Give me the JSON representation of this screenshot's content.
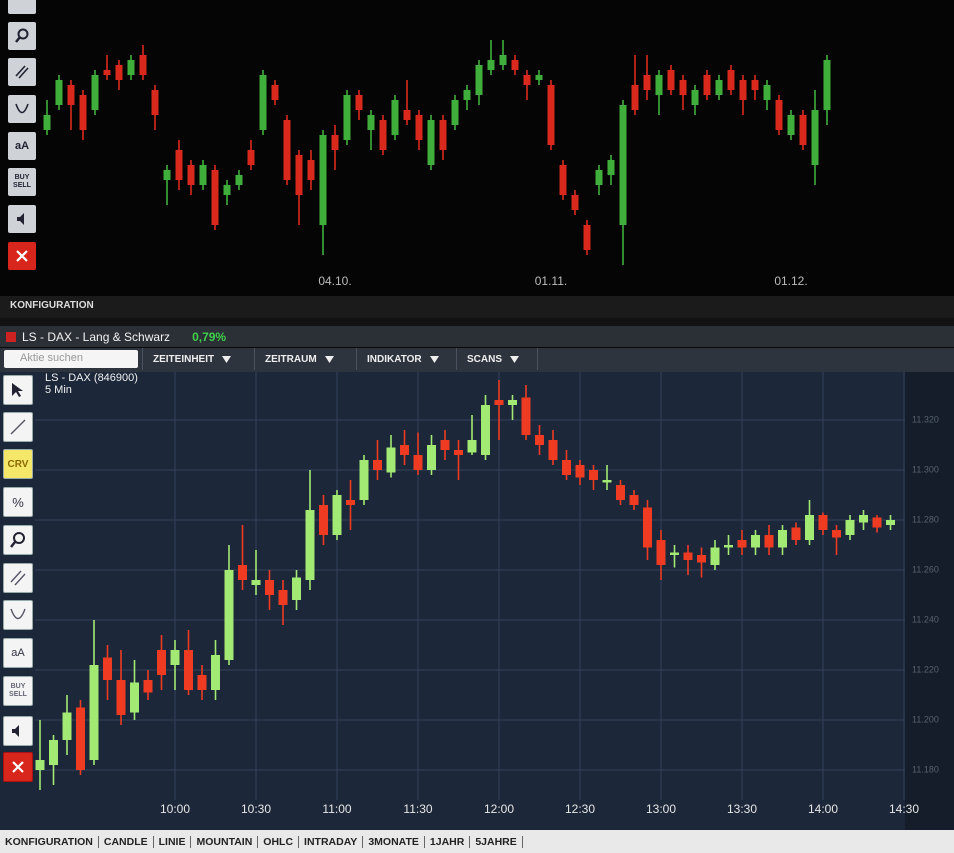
{
  "top_toolbar": {
    "font": "aA",
    "buy": "BUY",
    "sell": "SELL"
  },
  "top_footer": "KONFIGURATION",
  "window": {
    "title": "LS - DAX - Lang & Schwarz",
    "change": "0,79%",
    "search": "Aktie suchen",
    "menus": [
      "ZEITEINHEIT",
      "ZEITRAUM",
      "INDIKATOR",
      "SCANS"
    ]
  },
  "bottom_toolbar": {
    "crv": "CRV",
    "percent": "%",
    "font": "aA",
    "buy": "BUY",
    "sell": "SELL"
  },
  "bottom_footer": [
    "KONFIGURATION",
    "CANDLE",
    "LINIE",
    "MOUNTAIN",
    "OHLC",
    "INTRADAY",
    "3MONATE",
    "1JAHR",
    "5JAHRE"
  ],
  "chart_data": [
    {
      "type": "candlestick",
      "up_color": "#3fae3a",
      "down_color": "#d8291c",
      "grid": false,
      "ylim": [
        11000,
        11540
      ],
      "categories": [
        null,
        null,
        null,
        null,
        null,
        null,
        null,
        null,
        null,
        null,
        null,
        null,
        null,
        null,
        null,
        null,
        null,
        null,
        null,
        null,
        null,
        null,
        null,
        null,
        "04.10.",
        null,
        null,
        null,
        null,
        null,
        null,
        null,
        null,
        null,
        null,
        null,
        null,
        null,
        null,
        null,
        null,
        null,
        "01.11.",
        null,
        null,
        null,
        null,
        null,
        null,
        null,
        null,
        null,
        null,
        null,
        null,
        null,
        null,
        null,
        null,
        null,
        null,
        null,
        "01.12.",
        null,
        null,
        null
      ],
      "open": [
        11280,
        11330,
        11370,
        11350,
        11320,
        11400,
        11410,
        11390,
        11430,
        11360,
        11180,
        11240,
        11210,
        11170,
        11200,
        11150,
        11170,
        11240,
        11280,
        11370,
        11300,
        11230,
        11220,
        11090,
        11270,
        11260,
        11350,
        11280,
        11300,
        11270,
        11320,
        11310,
        11210,
        11300,
        11290,
        11340,
        11350,
        11400,
        11410,
        11420,
        11390,
        11380,
        11370,
        11210,
        11150,
        11090,
        11170,
        11190,
        11090,
        11370,
        11390,
        11350,
        11400,
        11380,
        11330,
        11390,
        11350,
        11400,
        11380,
        11380,
        11340,
        11340,
        11270,
        11310,
        11210,
        11320
      ],
      "high": [
        11340,
        11390,
        11380,
        11360,
        11400,
        11430,
        11420,
        11430,
        11450,
        11370,
        11210,
        11260,
        11220,
        11220,
        11210,
        11180,
        11200,
        11260,
        11400,
        11380,
        11310,
        11240,
        11240,
        11280,
        11290,
        11360,
        11360,
        11320,
        11310,
        11350,
        11380,
        11320,
        11310,
        11310,
        11350,
        11370,
        11420,
        11460,
        11460,
        11430,
        11400,
        11400,
        11380,
        11220,
        11160,
        11100,
        11210,
        11230,
        11340,
        11430,
        11430,
        11400,
        11410,
        11390,
        11370,
        11400,
        11390,
        11410,
        11390,
        11390,
        11380,
        11350,
        11320,
        11320,
        11360,
        11430
      ],
      "low": [
        11270,
        11320,
        11280,
        11260,
        11310,
        11380,
        11360,
        11380,
        11380,
        11280,
        11130,
        11160,
        11150,
        11160,
        11080,
        11130,
        11160,
        11200,
        11270,
        11330,
        11170,
        11090,
        11160,
        11030,
        11200,
        11250,
        11300,
        11240,
        11230,
        11260,
        11290,
        11240,
        11200,
        11220,
        11280,
        11320,
        11330,
        11390,
        11400,
        11390,
        11340,
        11370,
        11240,
        11140,
        11110,
        11030,
        11150,
        11170,
        11010,
        11310,
        11340,
        11310,
        11350,
        11320,
        11310,
        11340,
        11340,
        11350,
        11310,
        11340,
        11320,
        11270,
        11260,
        11240,
        11170,
        11290
      ],
      "close": [
        11310,
        11380,
        11330,
        11280,
        11390,
        11390,
        11380,
        11420,
        11390,
        11310,
        11200,
        11180,
        11170,
        11210,
        11090,
        11170,
        11190,
        11210,
        11390,
        11340,
        11180,
        11150,
        11180,
        11270,
        11240,
        11350,
        11320,
        11310,
        11240,
        11340,
        11300,
        11260,
        11300,
        11240,
        11340,
        11360,
        11410,
        11420,
        11430,
        11400,
        11370,
        11390,
        11250,
        11150,
        11120,
        11040,
        11200,
        11220,
        11330,
        11320,
        11360,
        11390,
        11360,
        11350,
        11360,
        11350,
        11380,
        11360,
        11340,
        11360,
        11370,
        11280,
        11310,
        11250,
        11320,
        11420
      ]
    },
    {
      "type": "candlestick",
      "title": "LS - DAX (846900)",
      "subtitle": "5 Min",
      "up_color": "#a3ea74",
      "down_color": "#ee3b22",
      "grid": true,
      "ylim": [
        11170,
        11340
      ],
      "yticks": [
        {
          "value": 11180,
          "label": "11.180"
        },
        {
          "value": 11200,
          "label": "11.200"
        },
        {
          "value": 11220,
          "label": "11.220"
        },
        {
          "value": 11240,
          "label": "11.240"
        },
        {
          "value": 11260,
          "label": "11.260"
        },
        {
          "value": 11280,
          "label": "11.280"
        },
        {
          "value": 11300,
          "label": "11.300"
        },
        {
          "value": 11320,
          "label": "11.320"
        }
      ],
      "categories": [
        null,
        null,
        null,
        null,
        null,
        null,
        null,
        null,
        null,
        null,
        "10:00",
        null,
        null,
        null,
        null,
        null,
        "10:30",
        null,
        null,
        null,
        null,
        null,
        "11:00",
        null,
        null,
        null,
        null,
        null,
        "11:30",
        null,
        null,
        null,
        null,
        null,
        "12:00",
        null,
        null,
        null,
        null,
        null,
        "12:30",
        null,
        null,
        null,
        null,
        null,
        "13:00",
        null,
        null,
        null,
        null,
        null,
        "13:30",
        null,
        null,
        null,
        null,
        null,
        "14:00",
        null,
        null,
        null,
        null,
        null,
        "14:30"
      ],
      "open": [
        11180,
        11182,
        11192,
        11205,
        11184,
        11225,
        11216,
        11203,
        11216,
        11228,
        11222,
        11228,
        11218,
        11212,
        11224,
        11262,
        11254,
        11256,
        11252,
        11248,
        11256,
        11286,
        11274,
        11288,
        11288,
        11304,
        11299,
        11310,
        11306,
        11300,
        11312,
        11308,
        11307,
        11306,
        11328,
        11326,
        11329,
        11314,
        11312,
        11304,
        11302,
        11300,
        11295,
        11294,
        11290,
        11285,
        11272,
        11266,
        11267,
        11266,
        11262,
        11269,
        11272,
        11269,
        11274,
        11269,
        11277,
        11272,
        11282,
        11276,
        11274,
        11279,
        11281,
        11278,
        null
      ],
      "high": [
        11200,
        11194,
        11210,
        11208,
        11240,
        11230,
        11228,
        11224,
        11220,
        11234,
        11232,
        11236,
        11222,
        11232,
        11270,
        11278,
        11268,
        11260,
        11256,
        11260,
        11300,
        11290,
        11292,
        11296,
        11306,
        11312,
        11314,
        11316,
        11315,
        11314,
        11316,
        11312,
        11322,
        11330,
        11336,
        11330,
        11334,
        11318,
        11316,
        11308,
        11304,
        11302,
        11302,
        11296,
        11292,
        11288,
        11276,
        11270,
        11270,
        11269,
        11272,
        11274,
        11276,
        11276,
        11278,
        11278,
        11279,
        11288,
        11283,
        11278,
        11282,
        11284,
        11282,
        11282,
        null
      ],
      "low": [
        11172,
        11174,
        11186,
        11178,
        11182,
        11208,
        11198,
        11200,
        11208,
        11212,
        11212,
        11210,
        11208,
        11208,
        11222,
        11252,
        11250,
        11244,
        11238,
        11244,
        11252,
        11270,
        11272,
        11276,
        11286,
        11296,
        11297,
        11302,
        11298,
        11298,
        11304,
        11296,
        11306,
        11304,
        11312,
        11320,
        11312,
        11306,
        11302,
        11296,
        11294,
        11292,
        11292,
        11286,
        11284,
        11264,
        11256,
        11261,
        11258,
        11257,
        11260,
        11266,
        11266,
        11266,
        11266,
        11266,
        11270,
        11270,
        11274,
        11266,
        11272,
        11276,
        11275,
        11276,
        null
      ],
      "close": [
        11184,
        11192,
        11203,
        11180,
        11222,
        11216,
        11202,
        11215,
        11211,
        11218,
        11228,
        11212,
        11212,
        11226,
        11260,
        11256,
        11256,
        11250,
        11246,
        11257,
        11284,
        11274,
        11290,
        11286,
        11304,
        11300,
        11309,
        11306,
        11300,
        11310,
        11308,
        11306,
        11312,
        11326,
        11326,
        11328,
        11314,
        11310,
        11304,
        11298,
        11297,
        11296,
        11296,
        11288,
        11286,
        11269,
        11262,
        11267,
        11264,
        11263,
        11269,
        11270,
        11269,
        11274,
        11269,
        11276,
        11272,
        11282,
        11276,
        11273,
        11280,
        11282,
        11277,
        11280,
        null
      ]
    }
  ]
}
